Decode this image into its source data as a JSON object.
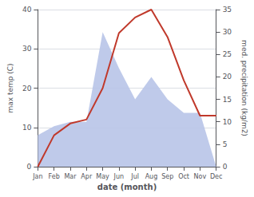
{
  "chart_data": {
    "type": "line",
    "categories": [
      "Jan",
      "Feb",
      "Mar",
      "Apr",
      "May",
      "Jun",
      "Jul",
      "Aug",
      "Sep",
      "Oct",
      "Nov",
      "Dec"
    ],
    "xlabel": "date (month)",
    "ylabel": "max temp (C)",
    "y2label": "med. precipitation (kg/m2)",
    "series": [
      {
        "type": "area",
        "axis": "y2",
        "color": "#b8c4e8",
        "values": [
          7,
          9,
          10,
          10,
          30,
          22,
          15,
          20,
          15,
          12,
          12,
          0
        ]
      },
      {
        "type": "line",
        "color": "#c0392b",
        "values": [
          0,
          8,
          11,
          12,
          20,
          34,
          38,
          40,
          33,
          22,
          13,
          13
        ]
      }
    ],
    "ylim": [
      0,
      40
    ],
    "yticks": [
      0,
      10,
      20,
      30,
      40
    ],
    "y2lim": [
      0,
      35
    ],
    "y2ticks": [
      0,
      5,
      10,
      15,
      20,
      25,
      30,
      35
    ],
    "grid": true
  }
}
